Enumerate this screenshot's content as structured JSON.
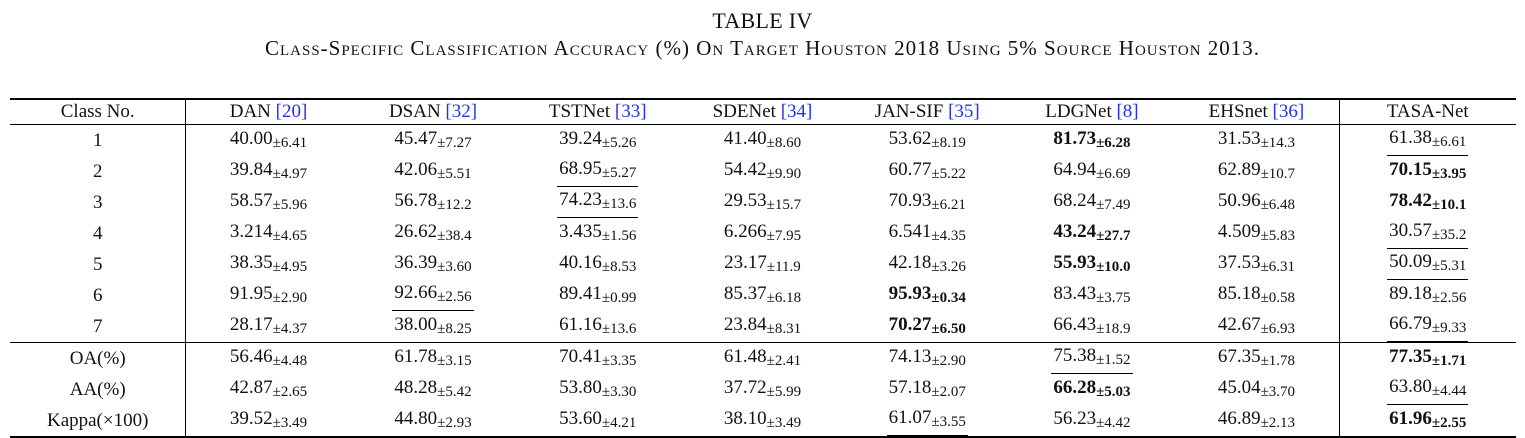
{
  "caption": {
    "title": "TABLE IV",
    "subtitle": "Class-Specific Classification Accuracy (%) On Target Houston 2018 Using 5% Source Houston 2013."
  },
  "table": {
    "first_header": "Class No.",
    "methods": [
      {
        "name": "DAN",
        "ref": "[20]"
      },
      {
        "name": "DSAN",
        "ref": "[32]"
      },
      {
        "name": "TSTNet",
        "ref": "[33]"
      },
      {
        "name": "SDENet",
        "ref": "[34]"
      },
      {
        "name": "JAN-SIF",
        "ref": "[35]"
      },
      {
        "name": "LDGNet",
        "ref": "[8]"
      },
      {
        "name": "EHSnet",
        "ref": "[36]"
      },
      {
        "name": "TASA-Net",
        "ref": ""
      }
    ],
    "rows": [
      {
        "label": "1",
        "cells": [
          {
            "v": "40.00",
            "s": "±6.41"
          },
          {
            "v": "45.47",
            "s": "±7.27"
          },
          {
            "v": "39.24",
            "s": "±5.26"
          },
          {
            "v": "41.40",
            "s": "±8.60"
          },
          {
            "v": "53.62",
            "s": "±8.19"
          },
          {
            "v": "81.73",
            "s": "±6.28",
            "bold": true
          },
          {
            "v": "31.53",
            "s": "±14.3"
          },
          {
            "v": "61.38",
            "s": "±6.61",
            "underline": true
          }
        ]
      },
      {
        "label": "2",
        "cells": [
          {
            "v": "39.84",
            "s": "±4.97"
          },
          {
            "v": "42.06",
            "s": "±5.51"
          },
          {
            "v": "68.95",
            "s": "±5.27",
            "underline": true
          },
          {
            "v": "54.42",
            "s": "±9.90"
          },
          {
            "v": "60.77",
            "s": "±5.22"
          },
          {
            "v": "64.94",
            "s": "±6.69"
          },
          {
            "v": "62.89",
            "s": "±10.7"
          },
          {
            "v": "70.15",
            "s": "±3.95",
            "bold": true
          }
        ]
      },
      {
        "label": "3",
        "cells": [
          {
            "v": "58.57",
            "s": "±5.96"
          },
          {
            "v": "56.78",
            "s": "±12.2"
          },
          {
            "v": "74.23",
            "s": "±13.6",
            "underline": true
          },
          {
            "v": "29.53",
            "s": "±15.7"
          },
          {
            "v": "70.93",
            "s": "±6.21"
          },
          {
            "v": "68.24",
            "s": "±7.49"
          },
          {
            "v": "50.96",
            "s": "±6.48"
          },
          {
            "v": "78.42",
            "s": "±10.1",
            "bold": true
          }
        ]
      },
      {
        "label": "4",
        "cells": [
          {
            "v": "3.214",
            "s": "±4.65"
          },
          {
            "v": "26.62",
            "s": "±38.4"
          },
          {
            "v": "3.435",
            "s": "±1.56"
          },
          {
            "v": "6.266",
            "s": "±7.95"
          },
          {
            "v": "6.541",
            "s": "±4.35"
          },
          {
            "v": "43.24",
            "s": "±27.7",
            "bold": true
          },
          {
            "v": "4.509",
            "s": "±5.83"
          },
          {
            "v": "30.57",
            "s": "±35.2",
            "underline": true
          }
        ]
      },
      {
        "label": "5",
        "cells": [
          {
            "v": "38.35",
            "s": "±4.95"
          },
          {
            "v": "36.39",
            "s": "±3.60"
          },
          {
            "v": "40.16",
            "s": "±8.53"
          },
          {
            "v": "23.17",
            "s": "±11.9"
          },
          {
            "v": "42.18",
            "s": "±3.26"
          },
          {
            "v": "55.93",
            "s": "±10.0",
            "bold": true
          },
          {
            "v": "37.53",
            "s": "±6.31"
          },
          {
            "v": "50.09",
            "s": "±5.31",
            "underline": true
          }
        ]
      },
      {
        "label": "6",
        "cells": [
          {
            "v": "91.95",
            "s": "±2.90"
          },
          {
            "v": "92.66",
            "s": "±2.56",
            "underline": true
          },
          {
            "v": "89.41",
            "s": "±0.99"
          },
          {
            "v": "85.37",
            "s": "±6.18"
          },
          {
            "v": "95.93",
            "s": "±0.34",
            "bold": true
          },
          {
            "v": "83.43",
            "s": "±3.75"
          },
          {
            "v": "85.18",
            "s": "±0.58"
          },
          {
            "v": "89.18",
            "s": "±2.56"
          }
        ]
      },
      {
        "label": "7",
        "cells": [
          {
            "v": "28.17",
            "s": "±4.37"
          },
          {
            "v": "38.00",
            "s": "±8.25"
          },
          {
            "v": "61.16",
            "s": "±13.6"
          },
          {
            "v": "23.84",
            "s": "±8.31"
          },
          {
            "v": "70.27",
            "s": "±6.50",
            "bold": true
          },
          {
            "v": "66.43",
            "s": "±18.9"
          },
          {
            "v": "42.67",
            "s": "±6.93"
          },
          {
            "v": "66.79",
            "s": "±9.33",
            "underline": true
          }
        ]
      },
      {
        "label": "OA(%)",
        "sep": true,
        "cells": [
          {
            "v": "56.46",
            "s": "±4.48"
          },
          {
            "v": "61.78",
            "s": "±3.15"
          },
          {
            "v": "70.41",
            "s": "±3.35"
          },
          {
            "v": "61.48",
            "s": "±2.41"
          },
          {
            "v": "74.13",
            "s": "±2.90"
          },
          {
            "v": "75.38",
            "s": "±1.52",
            "underline": true
          },
          {
            "v": "67.35",
            "s": "±1.78"
          },
          {
            "v": "77.35",
            "s": "±1.71",
            "bold": true
          }
        ]
      },
      {
        "label": "AA(%)",
        "cells": [
          {
            "v": "42.87",
            "s": "±2.65"
          },
          {
            "v": "48.28",
            "s": "±5.42"
          },
          {
            "v": "53.80",
            "s": "±3.30"
          },
          {
            "v": "37.72",
            "s": "±5.99"
          },
          {
            "v": "57.18",
            "s": "±2.07"
          },
          {
            "v": "66.28",
            "s": "±5.03",
            "bold": true
          },
          {
            "v": "45.04",
            "s": "±3.70"
          },
          {
            "v": "63.80",
            "s": "±4.44",
            "underline": true
          }
        ]
      },
      {
        "label": "Kappa(×100)",
        "cells": [
          {
            "v": "39.52",
            "s": "±3.49"
          },
          {
            "v": "44.80",
            "s": "±2.93"
          },
          {
            "v": "53.60",
            "s": "±4.21"
          },
          {
            "v": "38.10",
            "s": "±3.49"
          },
          {
            "v": "61.07",
            "s": "±3.55",
            "underline": true
          },
          {
            "v": "56.23",
            "s": "±4.42"
          },
          {
            "v": "46.89",
            "s": "±2.13"
          },
          {
            "v": "61.96",
            "s": "±2.55",
            "bold": true
          }
        ]
      }
    ]
  }
}
